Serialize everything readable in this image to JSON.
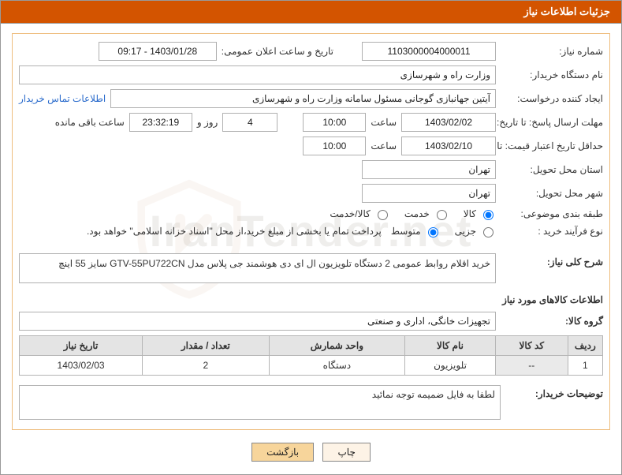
{
  "header_title": "جزئیات اطلاعات نیاز",
  "watermark_text": "IranTender.net",
  "fields": {
    "need_no_label": "شماره نیاز:",
    "need_no": "1103000004000011",
    "announce_label": "تاریخ و ساعت اعلان عمومی:",
    "announce_value": "1403/01/28 - 09:17",
    "buyer_org_label": "نام دستگاه خریدار:",
    "buyer_org": "وزارت راه و شهرسازی",
    "requester_label": "ایجاد کننده درخواست:",
    "requester": "آیتین جهانبازی گوجانی مسئول سامانه وزارت راه و شهرسازی",
    "contact_link": "اطلاعات تماس خریدار",
    "deadline_send_label": "مهلت ارسال پاسخ: تا تاریخ:",
    "deadline_send_date": "1403/02/02",
    "time_label": "ساعت",
    "deadline_send_time": "10:00",
    "days_value": "4",
    "days_word": "روز و",
    "countdown": "23:32:19",
    "remain_label": "ساعت باقی مانده",
    "min_valid_label": "حداقل تاریخ اعتبار قیمت: تا تاریخ:",
    "min_valid_date": "1403/02/10",
    "min_valid_time": "10:00",
    "province_label": "استان محل تحویل:",
    "province": "تهران",
    "city_label": "شهر محل تحویل:",
    "city": "تهران",
    "subject_class_label": "طبقه بندی موضوعی:",
    "radio_kala": "کالا",
    "radio_khedmat": "خدمت",
    "radio_kala_khedmat": "کالا/خدمت",
    "purchase_type_label": "نوع فرآیند خرید :",
    "radio_jozi": "جزیی",
    "radio_motavaset": "متوسط",
    "purchase_note": "پرداخت تمام یا بخشی از مبلغ خرید،از محل \"اسناد خزانه اسلامی\" خواهد بود.",
    "general_desc_label": "شرح کلی نیاز:",
    "general_desc": "خرید اقلام روابط عمومی 2 دستگاه تلویزیون ال ای دی هوشمند جی پلاس مدل GTV-55PU722CN سایز 55 اینچ",
    "items_section": "اطلاعات کالاهای مورد نیاز",
    "goods_group_label": "گروه کالا:",
    "goods_group": "تجهیزات خانگی، اداری و صنعتی",
    "buyer_notes_label": "توضیحات خریدار:",
    "buyer_notes": "لطفا به فایل ضمیمه توجه نمائید"
  },
  "table": {
    "headers": {
      "row": "ردیف",
      "code": "کد کالا",
      "name": "نام کالا",
      "unit": "واحد شمارش",
      "qty": "تعداد / مقدار",
      "date": "تاریخ نیاز"
    },
    "rows": [
      {
        "row": "1",
        "code": "--",
        "name": "تلویزیون",
        "unit": "دستگاه",
        "qty": "2",
        "date": "1403/02/03"
      }
    ]
  },
  "buttons": {
    "print": "چاپ",
    "back": "بازگشت"
  },
  "colors": {
    "header_bg": "#d35400",
    "group_border": "#eebd7e",
    "field_border": "#b0b0b0",
    "table_header_bg": "#e4e4e4"
  }
}
